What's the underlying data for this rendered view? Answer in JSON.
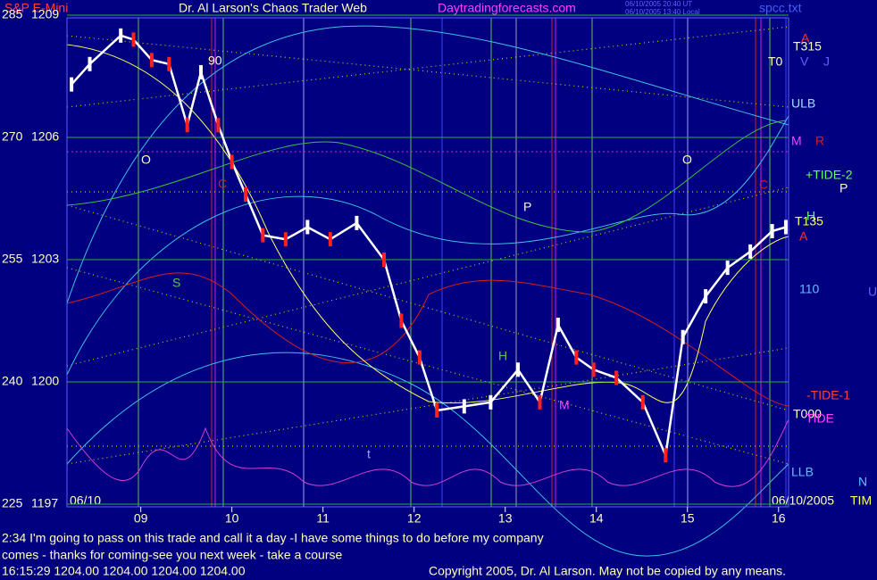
{
  "chart_data": {
    "type": "line",
    "symbol": "S&P E-Mini",
    "title": "Dr. Al Larson's Chaos Trader Web",
    "site": "Daytradingforecasts.com",
    "timestamps": [
      "06/10/2005 20:40 UT",
      "06/10/2005 13:40 Local"
    ],
    "file": "spcc.txt",
    "start_date": "06/10",
    "end_date": "06/10/2005",
    "x": [
      8.24,
      8.44,
      8.78,
      8.92,
      9.12,
      9.31,
      9.51,
      9.66,
      9.85,
      10.0,
      10.15,
      10.34,
      10.59,
      10.83,
      11.08,
      11.37,
      11.67,
      11.86,
      12.06,
      12.25,
      12.55,
      12.84,
      13.14,
      13.38,
      13.58,
      13.78,
      13.97,
      14.22,
      14.51,
      14.76,
      14.95,
      15.2,
      15.44,
      15.69,
      15.93,
      16.08
    ],
    "series": [
      {
        "color": "#ffffff",
        "values": [
          1207.3,
          1207.8,
          1208.5,
          1208.4,
          1207.9,
          1207.8,
          1206.3,
          1207.6,
          1206.3,
          1205.4,
          1204.6,
          1203.6,
          1203.5,
          1203.8,
          1203.5,
          1203.9,
          1203.0,
          1201.5,
          1200.6,
          1199.3,
          1199.4,
          1199.5,
          1200.3,
          1199.5,
          1201.4,
          1200.6,
          1200.3,
          1200.1,
          1199.5,
          1198.2,
          1201.1,
          1202.1,
          1202.8,
          1203.2,
          1203.7,
          1203.8
        ]
      }
    ],
    "xlim": [
      8.19,
      16.11
    ],
    "xticks": [
      {
        "value": 9,
        "label": "09"
      },
      10,
      11,
      12,
      13,
      14,
      15,
      16
    ],
    "ylim": [
      1197,
      1209
    ],
    "yticks": [
      1197,
      1200,
      1203,
      1206,
      1209
    ],
    "y2lim": [
      225,
      285
    ],
    "y2ticks": [
      225,
      240,
      255,
      270,
      285
    ],
    "grid": true,
    "annotations": [
      "90",
      "O",
      "C",
      "S",
      "t",
      "P",
      "H",
      "M",
      "O",
      "C",
      "T315",
      "T0",
      "V",
      "J",
      "A",
      "ULB",
      "M",
      "R",
      "+TIDE-2",
      "P",
      "H",
      "T135",
      "A",
      "110",
      "U",
      "-TIDE-1",
      "T000",
      "TIDE",
      "LLB",
      "N",
      "TIM"
    ],
    "messages": [
      "2:34 I'm going to pass on this trade and call it a day -I have some things to do before my company",
      "comes - thanks for coming-see you next week - take a course"
    ],
    "quote": "16:15:29  1204.00 1204.00 1204.00 1204.00",
    "copyright": "Copyright 2005, Dr. Al Larson. May not be copied by any means."
  }
}
